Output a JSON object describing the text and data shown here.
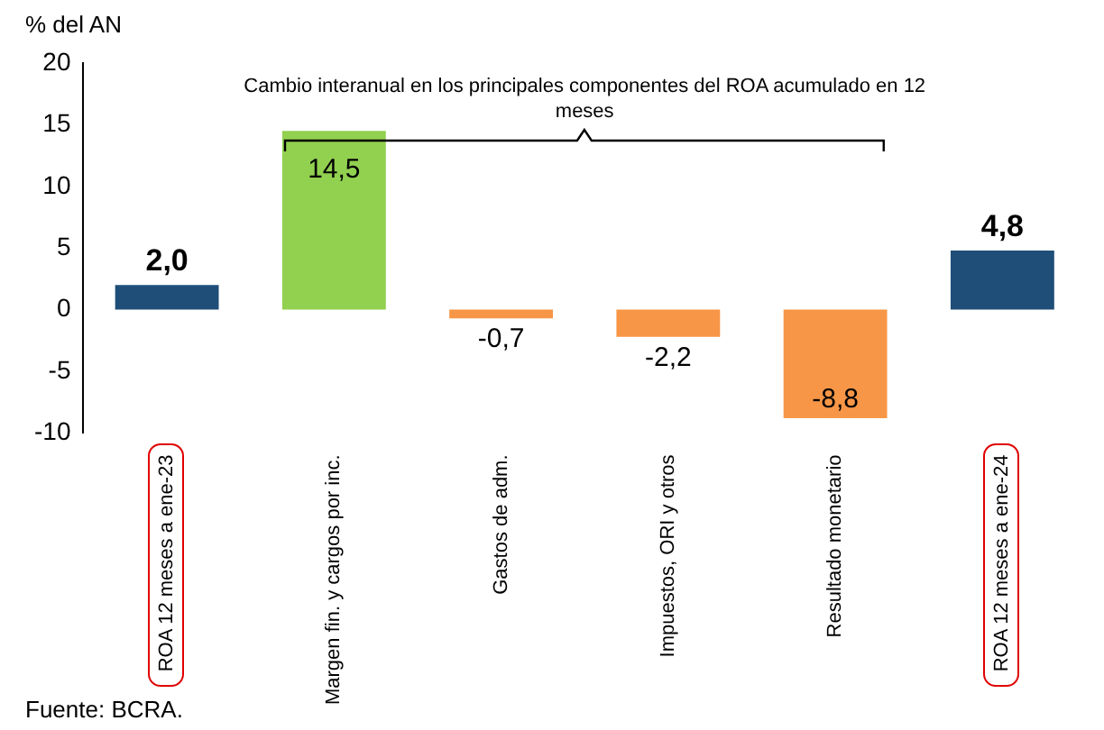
{
  "chart_data": {
    "type": "bar",
    "ylabel": "% del AN",
    "categories": [
      "ROA 12 meses a ene-23",
      "Margen fin. y cargos por inc.",
      "Gastos de adm.",
      "Impuestos, ORI y otros",
      "Resultado monetario",
      "ROA 12 meses a ene-24"
    ],
    "values": [
      2.0,
      14.5,
      -0.7,
      -2.2,
      -8.8,
      4.8
    ],
    "colors": [
      "#1f4e79",
      "#92d050",
      "#f79646",
      "#f79646",
      "#f79646",
      "#1f4e79"
    ],
    "value_labels": [
      "2,0",
      "14,5",
      "-0,7",
      "-2,2",
      "-8,8",
      "4,8"
    ],
    "ylim": [
      -10,
      20
    ],
    "yticks": [
      -10,
      -5,
      0,
      5,
      10,
      15,
      20
    ],
    "grid": false,
    "legend": false,
    "annotations": [
      "Cambio interanual en los principales componentes del ROA acumulado en 12 meses",
      "Fuente: BCRA."
    ]
  }
}
